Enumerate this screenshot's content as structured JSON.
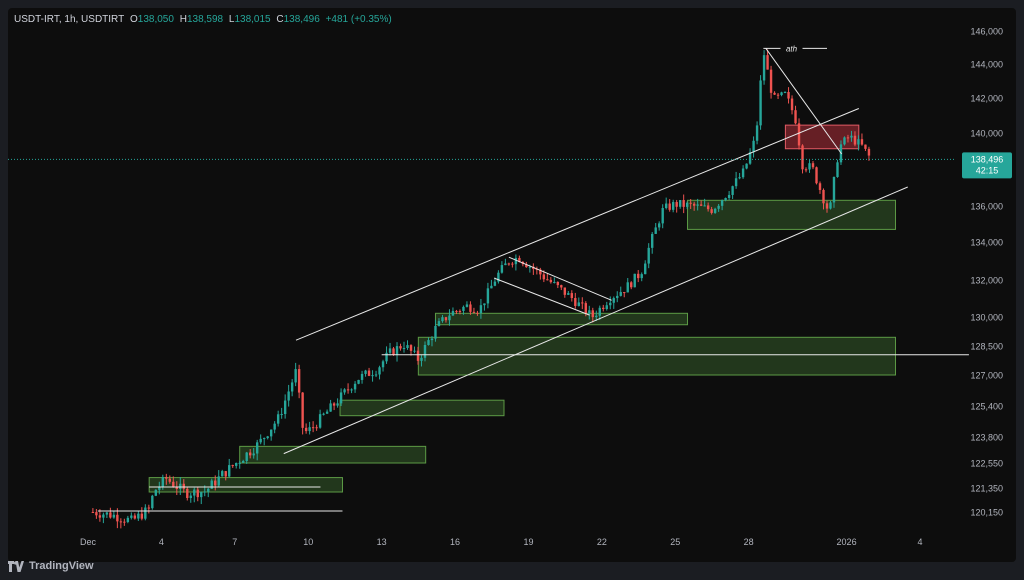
{
  "header": {
    "symbol": "USDT-IRT, 1h, USDTIRT",
    "open_label": "O",
    "open": "138,050",
    "high_label": "H",
    "high": "138,598",
    "low_label": "L",
    "low": "138,015",
    "close_label": "C",
    "close": "138,496",
    "change": "+481 (+0.35%)"
  },
  "price_tag": {
    "price": "138,496",
    "countdown": "42:15"
  },
  "annotation_ath": "ath",
  "footer": {
    "brand": "TradingView"
  },
  "colors": {
    "up": "#26a69a",
    "down": "#ef5350",
    "bg": "#0d0d0d",
    "zone_green": "#3c6a2f",
    "zone_red": "#b0303a"
  },
  "chart_data": {
    "type": "candlestick",
    "interval": "1h",
    "title": "",
    "y_tick_labels": [
      "146,000",
      "144,000",
      "142,000",
      "140,000",
      "138,000",
      "136,000",
      "134,000",
      "132,000",
      "130,000",
      "128,500",
      "127,000",
      "125,400",
      "123,800",
      "122,550",
      "121,350",
      "120,150"
    ],
    "y_tick_values": [
      146000,
      144000,
      142000,
      140000,
      138000,
      136000,
      134000,
      132000,
      130000,
      128500,
      127000,
      125400,
      123800,
      122550,
      121350,
      120150
    ],
    "x_tick_labels": [
      "Dec",
      "4",
      "7",
      "10",
      "13",
      "16",
      "19",
      "22",
      "25",
      "28",
      "2026",
      "4"
    ],
    "x_tick_days": [
      1,
      4,
      7,
      10,
      13,
      16,
      19,
      22,
      25,
      28,
      32,
      35
    ],
    "last_price": 138496,
    "price_path": [
      [
        1.2,
        120150
      ],
      [
        2.0,
        120000
      ],
      [
        2.8,
        119700
      ],
      [
        3.5,
        120300
      ],
      [
        3.7,
        121200
      ],
      [
        4.2,
        121800
      ],
      [
        5.0,
        121100
      ],
      [
        5.8,
        121200
      ],
      [
        6.5,
        122000
      ],
      [
        7.2,
        122700
      ],
      [
        8.0,
        123500
      ],
      [
        8.8,
        124800
      ],
      [
        9.5,
        127200
      ],
      [
        9.8,
        124000
      ],
      [
        10.1,
        124200
      ],
      [
        11.0,
        125400
      ],
      [
        12.0,
        126800
      ],
      [
        12.8,
        127300
      ],
      [
        13.3,
        128100
      ],
      [
        13.9,
        128600
      ],
      [
        14.5,
        127800
      ],
      [
        15.2,
        129400
      ],
      [
        15.8,
        130200
      ],
      [
        16.5,
        130600
      ],
      [
        17.0,
        130400
      ],
      [
        17.7,
        132200
      ],
      [
        18.2,
        133000
      ],
      [
        18.6,
        133200
      ],
      [
        19.3,
        132500
      ],
      [
        20.0,
        131800
      ],
      [
        20.8,
        131000
      ],
      [
        21.6,
        130000
      ],
      [
        22.3,
        131000
      ],
      [
        23.0,
        131600
      ],
      [
        23.6,
        132400
      ],
      [
        24.0,
        134000
      ],
      [
        24.5,
        135800
      ],
      [
        25.0,
        136100
      ],
      [
        25.7,
        136000
      ],
      [
        26.5,
        135800
      ],
      [
        27.2,
        136800
      ],
      [
        27.8,
        137800
      ],
      [
        28.3,
        139800
      ],
      [
        28.6,
        144800
      ],
      [
        29.0,
        141900
      ],
      [
        29.5,
        142200
      ],
      [
        29.9,
        140900
      ],
      [
        30.2,
        138200
      ],
      [
        30.6,
        138000
      ],
      [
        31.0,
        136600
      ],
      [
        31.3,
        135600
      ],
      [
        31.7,
        139200
      ],
      [
        32.1,
        139800
      ],
      [
        32.6,
        139300
      ],
      [
        33.0,
        138496
      ]
    ],
    "zones": [
      {
        "kind": "demand",
        "x0": 3.5,
        "x1": 11.4,
        "y0": 121150,
        "y1": 121850
      },
      {
        "kind": "demand",
        "x0": 7.2,
        "x1": 14.8,
        "y0": 122550,
        "y1": 123350
      },
      {
        "kind": "demand",
        "x0": 11.3,
        "x1": 18.0,
        "y0": 124900,
        "y1": 125700
      },
      {
        "kind": "demand",
        "x0": 15.2,
        "x1": 25.5,
        "y0": 129600,
        "y1": 130200
      },
      {
        "kind": "demand",
        "x0": 14.5,
        "x1": 34.0,
        "y0": 127000,
        "y1": 128950
      },
      {
        "kind": "demand",
        "x0": 25.5,
        "x1": 34.0,
        "y0": 134700,
        "y1": 136300
      },
      {
        "kind": "supply",
        "x0": 29.5,
        "x1": 32.5,
        "y0": 139100,
        "y1": 140450
      }
    ],
    "lines": [
      {
        "x0": 9.5,
        "y0": 128800,
        "x1": 32.5,
        "y1": 141400
      },
      {
        "x0": 9.0,
        "y0": 123000,
        "x1": 34.5,
        "y1": 137000
      },
      {
        "x0": 18.2,
        "y0": 133200,
        "x1": 22.4,
        "y1": 130900
      },
      {
        "x0": 17.6,
        "y0": 132100,
        "x1": 21.5,
        "y1": 130100
      },
      {
        "x0": 28.7,
        "y0": 144950,
        "x1": 31.8,
        "y1": 138800
      },
      {
        "x0": 28.6,
        "y0": 144950,
        "x1": 29.3,
        "y1": 144950
      },
      {
        "x0": 30.2,
        "y0": 144950,
        "x1": 31.2,
        "y1": 144950
      },
      {
        "x0": 13.0,
        "y0": 128050,
        "x1": 37.0,
        "y1": 128050
      },
      {
        "x0": 1.4,
        "y0": 120200,
        "x1": 11.4,
        "y1": 120200
      },
      {
        "x0": 3.5,
        "y0": 121400,
        "x1": 10.5,
        "y1": 121400
      }
    ]
  }
}
